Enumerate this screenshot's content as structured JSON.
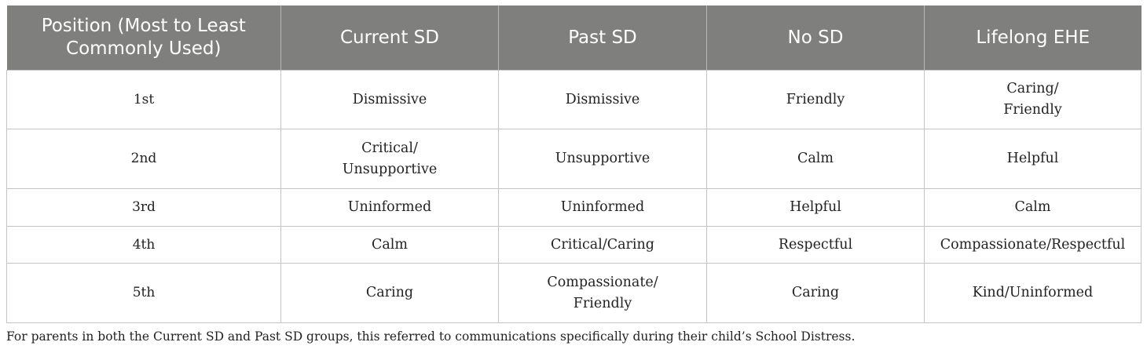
{
  "table": {
    "headers": [
      [
        "Position (Most to Least",
        "Commonly Used)"
      ],
      [
        "Current SD"
      ],
      [
        "Past SD"
      ],
      [
        "No SD"
      ],
      [
        "Lifelong EHE"
      ]
    ],
    "rows": [
      {
        "position": "1st",
        "cells": [
          [
            "Dismissive"
          ],
          [
            "Dismissive"
          ],
          [
            "Friendly"
          ],
          [
            "Caring/",
            "Friendly"
          ]
        ]
      },
      {
        "position": "2nd",
        "cells": [
          [
            "Critical/",
            "Unsupportive"
          ],
          [
            "Unsupportive"
          ],
          [
            "Calm"
          ],
          [
            "Helpful"
          ]
        ]
      },
      {
        "position": "3rd",
        "cells": [
          [
            "Uninformed"
          ],
          [
            "Uninformed"
          ],
          [
            "Helpful"
          ],
          [
            "Calm"
          ]
        ]
      },
      {
        "position": "4th",
        "cells": [
          [
            "Calm"
          ],
          [
            "Critical/Caring"
          ],
          [
            "Respectful"
          ],
          [
            "Compassionate/Respectful"
          ]
        ]
      },
      {
        "position": "5th",
        "cells": [
          [
            "Caring"
          ],
          [
            "Compassionate/",
            "Friendly"
          ],
          [
            "Caring"
          ],
          [
            "Kind/Uninformed"
          ]
        ]
      }
    ]
  },
  "footnote": "For parents in both the Current SD and Past SD groups, this referred to communications specifically during their child’s School Distress."
}
